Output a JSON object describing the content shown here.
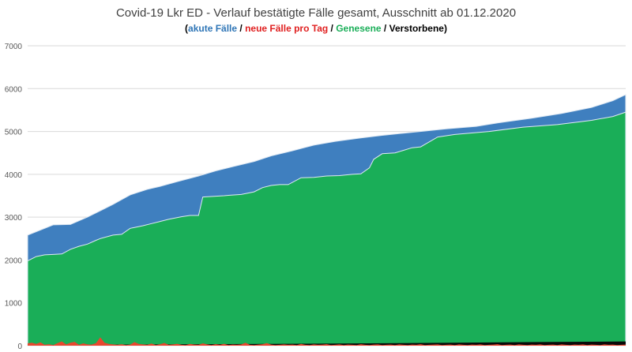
{
  "chart_data": {
    "type": "area",
    "title": "Covid-19 Lkr ED - Verlauf bestätigte Fälle gesamt, Ausschnitt ab 01.12.2020",
    "subtitle": [
      {
        "text": "(",
        "color": "#000000"
      },
      {
        "text": "akute Fälle",
        "color": "#2e75b6"
      },
      {
        "text": " / ",
        "color": "#000000"
      },
      {
        "text": "neue Fälle pro Tag",
        "color": "#e02020"
      },
      {
        "text": " / ",
        "color": "#000000"
      },
      {
        "text": "Genesene",
        "color": "#1aae58"
      },
      {
        "text": " / ",
        "color": "#000000"
      },
      {
        "text": "Verstorbene",
        "color": "#000000"
      },
      {
        "text": ")",
        "color": "#000000"
      }
    ],
    "ylim": [
      0,
      7000
    ],
    "yticks": [
      "0",
      "1000",
      "2000",
      "3000",
      "4000",
      "5000",
      "6000",
      "7000"
    ],
    "grid": true,
    "colors": {
      "total": "#3f7fbf",
      "genesene": "#1aae58",
      "verstorbene": "#0a0a0a",
      "neue": "#e8472e",
      "outline": "#dfe9f3"
    },
    "x_index_max": 140,
    "series": [
      {
        "name": "Fälle gesamt",
        "key": "total",
        "x": [
          0,
          3,
          6,
          10,
          14,
          17,
          20,
          24,
          28,
          31,
          35,
          40,
          44,
          48,
          53,
          57,
          62,
          67,
          72,
          78,
          83,
          88,
          93,
          98,
          105,
          110,
          118,
          125,
          132,
          137,
          140
        ],
        "values": [
          2580,
          2700,
          2820,
          2830,
          3000,
          3150,
          3300,
          3520,
          3650,
          3720,
          3830,
          3960,
          4080,
          4180,
          4300,
          4430,
          4550,
          4680,
          4770,
          4850,
          4910,
          4960,
          5010,
          5060,
          5120,
          5200,
          5310,
          5420,
          5560,
          5720,
          5860
        ]
      },
      {
        "name": "Genesene",
        "key": "genesene",
        "x": [
          0,
          2,
          4,
          6,
          8,
          10,
          12,
          14,
          16,
          17,
          20,
          22,
          24,
          25,
          27,
          29,
          31,
          33,
          36,
          38,
          40,
          41,
          46,
          47,
          50,
          53,
          55,
          57,
          59,
          61,
          64,
          67,
          70,
          73,
          76,
          78,
          80,
          81,
          83,
          86,
          88,
          90,
          92,
          93,
          96,
          100,
          108,
          116,
          124,
          132,
          137,
          140
        ],
        "values": [
          1980,
          2080,
          2120,
          2130,
          2140,
          2250,
          2320,
          2370,
          2460,
          2500,
          2580,
          2600,
          2740,
          2760,
          2800,
          2850,
          2900,
          2950,
          3010,
          3040,
          3040,
          3470,
          3500,
          3510,
          3530,
          3590,
          3690,
          3740,
          3760,
          3760,
          3920,
          3930,
          3960,
          3970,
          4000,
          4010,
          4150,
          4350,
          4480,
          4500,
          4560,
          4620,
          4640,
          4700,
          4870,
          4930,
          5000,
          5100,
          5160,
          5260,
          5350,
          5450
        ]
      },
      {
        "name": "Verstorbene",
        "key": "verstorbene",
        "x": [
          0,
          20,
          40,
          60,
          80,
          100,
          120,
          140
        ],
        "values": [
          15,
          25,
          35,
          45,
          55,
          70,
          85,
          100
        ]
      },
      {
        "name": "neue Fälle pro Tag",
        "key": "neue",
        "x": [
          0,
          1,
          2,
          3,
          4,
          5,
          6,
          7,
          8,
          9,
          10,
          11,
          12,
          13,
          14,
          15,
          16,
          17,
          18,
          19,
          20,
          21,
          22,
          23,
          24,
          25,
          26,
          27,
          28,
          29,
          30,
          31,
          32,
          33,
          34,
          35,
          36,
          37,
          38,
          39,
          40,
          41,
          42,
          43,
          44,
          45,
          46,
          47,
          48,
          49,
          50,
          51,
          52,
          53,
          54,
          55,
          56,
          57,
          58,
          59,
          60,
          61,
          62,
          63,
          64,
          65,
          66,
          67,
          68,
          69,
          70,
          71,
          72,
          73,
          74,
          75,
          76,
          77,
          78,
          79,
          80,
          81,
          82,
          83,
          84,
          85,
          86,
          87,
          88,
          89,
          90,
          91,
          92,
          93,
          94,
          95,
          96,
          97,
          98,
          99,
          100,
          101,
          102,
          103,
          104,
          105,
          106,
          107,
          108,
          109,
          110,
          111,
          112,
          113,
          114,
          115,
          116,
          117,
          118,
          119,
          120,
          121,
          122,
          123,
          124,
          125,
          126,
          127,
          128,
          129,
          130,
          131,
          132,
          133,
          134,
          135,
          136,
          137,
          138,
          139,
          140
        ],
        "values": [
          55,
          70,
          40,
          80,
          20,
          35,
          15,
          60,
          100,
          30,
          70,
          90,
          20,
          55,
          30,
          25,
          60,
          195,
          70,
          40,
          30,
          20,
          35,
          15,
          25,
          85,
          40,
          30,
          20,
          50,
          15,
          35,
          65,
          20,
          30,
          45,
          20,
          15,
          40,
          25,
          20,
          55,
          30,
          15,
          35,
          20,
          45,
          15,
          25,
          20,
          30,
          70,
          20,
          15,
          25,
          35,
          60,
          25,
          15,
          20,
          30,
          20,
          25,
          15,
          40,
          20,
          15,
          30,
          20,
          25,
          35,
          15,
          20,
          30,
          15,
          25,
          20,
          15,
          35,
          20,
          15,
          25,
          30,
          15,
          20,
          25,
          15,
          30,
          20,
          15,
          25,
          20,
          35,
          15,
          20,
          25,
          30,
          15,
          20,
          25,
          15,
          30,
          20,
          15,
          25,
          20,
          30,
          15,
          20,
          25,
          35,
          15,
          20,
          25,
          15,
          30,
          20,
          15,
          25,
          20,
          30,
          15,
          20,
          25,
          15,
          30,
          20,
          15,
          25,
          20,
          30,
          15,
          25,
          20,
          15,
          30,
          20,
          25,
          15,
          20,
          25
        ]
      }
    ]
  }
}
